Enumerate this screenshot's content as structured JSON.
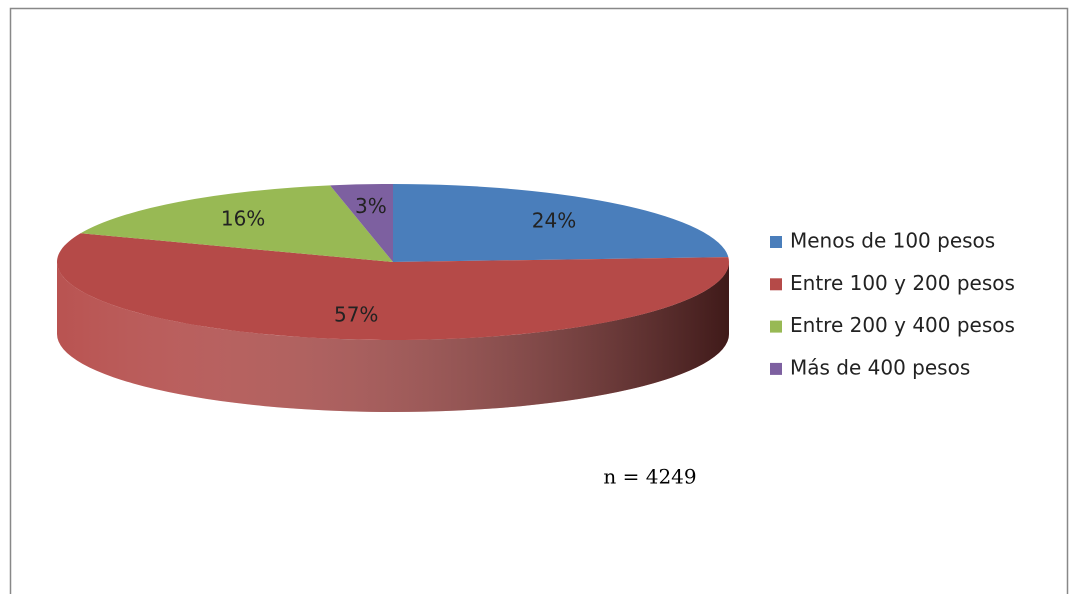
{
  "chart_data": {
    "type": "pie3d",
    "categories": [
      "Menos de 100 pesos",
      "Entre 100 y 200 pesos",
      "Entre 200 y 400 pesos",
      "Más de 400 pesos"
    ],
    "values": [
      24,
      57,
      16,
      3
    ],
    "value_labels": [
      "24%",
      "57%",
      "16%",
      "3%"
    ],
    "colors": [
      "#4a7ebb",
      "#b54a48",
      "#98b954",
      "#7d60a0"
    ],
    "annotation": "n = 4249",
    "legend": "right"
  }
}
